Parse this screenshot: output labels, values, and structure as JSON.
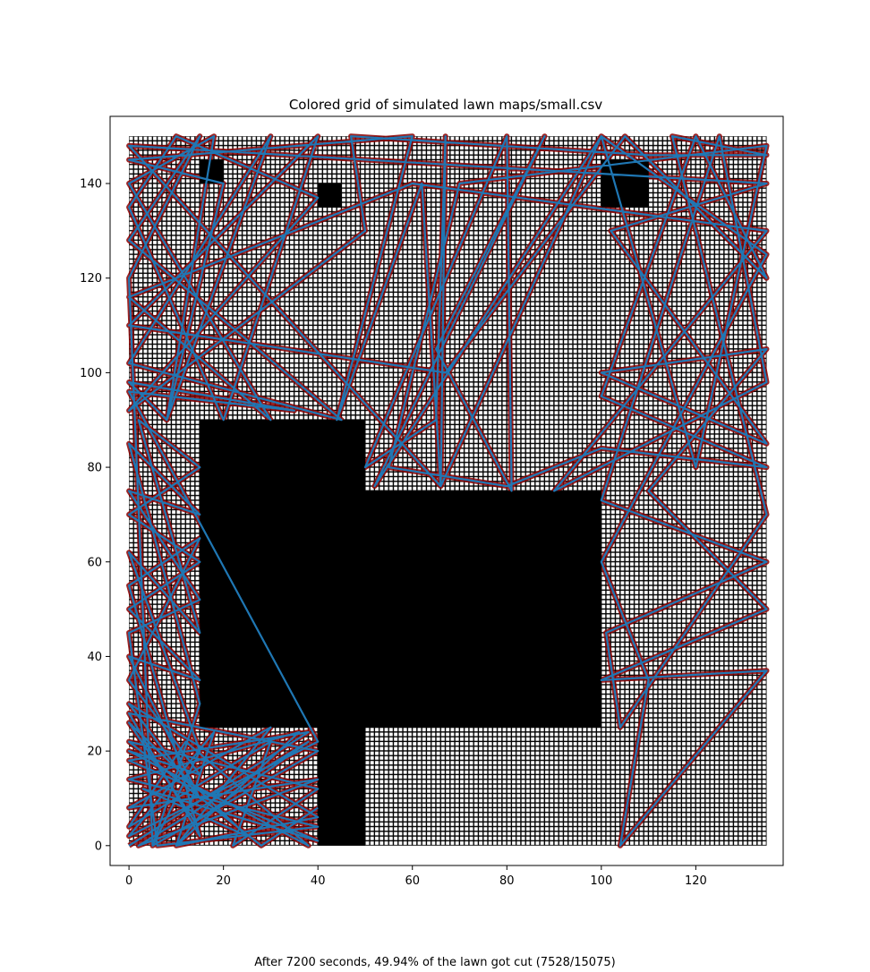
{
  "chart_data": {
    "type": "heatmap",
    "title": "Colored grid of simulated lawn maps/small.csv",
    "caption": "After 7200 seconds, 49.94% of the lawn got cut (7528/15075)",
    "xlabel": "",
    "ylabel": "",
    "xlim": [
      -4,
      138.5
    ],
    "ylim": [
      -4.2,
      154.2
    ],
    "grid_extent": {
      "x": [
        0,
        135
      ],
      "y": [
        0,
        150
      ]
    },
    "grid": false,
    "xticks": [
      0,
      20,
      40,
      60,
      80,
      100,
      120
    ],
    "yticks": [
      0,
      20,
      40,
      60,
      80,
      100,
      120,
      140
    ],
    "colors": {
      "uncut": "#ffffff",
      "cell_lines": "#000000",
      "obstacle": "#000000",
      "cut": "#8b0000",
      "path": "#1f77b4"
    },
    "obstacles": [
      {
        "x": [
          15,
          50
        ],
        "y": [
          25,
          90
        ]
      },
      {
        "x": [
          50,
          100
        ],
        "y": [
          25,
          75
        ]
      },
      {
        "x": [
          40,
          50
        ],
        "y": [
          0,
          25
        ]
      },
      {
        "x": [
          15,
          20
        ],
        "y": [
          140,
          145
        ]
      },
      {
        "x": [
          40,
          45
        ],
        "y": [
          135,
          140
        ]
      },
      {
        "x": [
          100,
          110
        ],
        "y": [
          135,
          145
        ]
      }
    ],
    "path": [
      [
        0,
        0
      ],
      [
        38,
        24
      ],
      [
        0,
        18
      ],
      [
        40,
        1
      ],
      [
        3,
        12
      ],
      [
        25,
        2
      ],
      [
        0,
        26
      ],
      [
        14,
        5
      ],
      [
        38,
        22
      ],
      [
        2,
        0
      ],
      [
        40,
        14
      ],
      [
        0,
        8
      ],
      [
        30,
        25
      ],
      [
        10,
        0
      ],
      [
        40,
        6
      ],
      [
        0,
        30
      ],
      [
        15,
        10
      ],
      [
        0,
        40
      ],
      [
        15,
        35
      ],
      [
        0,
        50
      ],
      [
        15,
        60
      ],
      [
        0,
        70
      ],
      [
        15,
        80
      ],
      [
        2,
        90
      ],
      [
        15,
        45
      ],
      [
        0,
        62
      ],
      [
        15,
        20
      ],
      [
        5,
        0
      ],
      [
        0,
        120
      ],
      [
        15,
        150
      ],
      [
        0,
        128
      ],
      [
        45,
        90
      ],
      [
        0,
        102
      ],
      [
        30,
        150
      ],
      [
        8,
        90
      ],
      [
        20,
        140
      ],
      [
        0,
        145
      ],
      [
        60,
        150
      ],
      [
        44,
        90
      ],
      [
        62,
        140
      ],
      [
        66,
        76
      ],
      [
        67,
        150
      ],
      [
        65,
        90
      ],
      [
        50,
        80
      ],
      [
        80,
        150
      ],
      [
        81,
        75
      ],
      [
        65,
        105
      ],
      [
        88,
        150
      ],
      [
        52,
        76
      ],
      [
        100,
        150
      ],
      [
        66,
        76
      ],
      [
        0,
        148
      ],
      [
        135,
        140
      ],
      [
        102,
        130
      ],
      [
        135,
        85
      ],
      [
        100,
        100
      ],
      [
        135,
        105
      ],
      [
        110,
        75
      ],
      [
        135,
        50
      ],
      [
        100,
        35
      ],
      [
        135,
        37
      ],
      [
        104,
        0
      ],
      [
        110,
        35
      ],
      [
        100,
        60
      ],
      [
        135,
        125
      ],
      [
        100,
        150
      ],
      [
        120,
        80
      ],
      [
        135,
        148
      ],
      [
        70,
        140
      ],
      [
        55,
        80
      ],
      [
        80,
        76
      ],
      [
        100,
        84
      ],
      [
        135,
        80
      ],
      [
        100,
        95
      ],
      [
        120,
        150
      ],
      [
        135,
        120
      ],
      [
        105,
        150
      ],
      [
        67,
        100
      ],
      [
        0,
        110
      ],
      [
        40,
        150
      ],
      [
        20,
        90
      ],
      [
        0,
        135
      ],
      [
        10,
        150
      ],
      [
        40,
        137
      ],
      [
        0,
        92
      ],
      [
        50,
        130
      ],
      [
        47,
        150
      ],
      [
        110,
        146
      ],
      [
        135,
        146
      ],
      [
        115,
        150
      ],
      [
        135,
        70
      ],
      [
        104,
        25
      ],
      [
        101,
        45
      ],
      [
        135,
        60
      ],
      [
        100,
        73
      ],
      [
        125,
        150
      ],
      [
        135,
        98
      ],
      [
        90,
        75
      ],
      [
        135,
        130
      ],
      [
        60,
        140
      ],
      [
        0,
        116
      ],
      [
        30,
        90
      ],
      [
        0,
        140
      ],
      [
        18,
        150
      ],
      [
        8,
        90
      ],
      [
        0,
        98
      ],
      [
        35,
        92
      ],
      [
        0,
        96
      ],
      [
        40,
        22
      ],
      [
        0,
        2
      ],
      [
        18,
        24
      ],
      [
        10,
        0
      ],
      [
        36,
        24
      ],
      [
        0,
        14
      ],
      [
        40,
        4
      ],
      [
        6,
        0
      ],
      [
        0,
        45
      ],
      [
        15,
        52
      ],
      [
        0,
        75
      ],
      [
        15,
        70
      ],
      [
        0,
        85
      ],
      [
        15,
        30
      ],
      [
        5,
        0
      ],
      [
        40,
        20
      ],
      [
        0,
        28
      ],
      [
        15,
        2
      ],
      [
        0,
        55
      ],
      [
        15,
        65
      ],
      [
        0,
        35
      ],
      [
        15,
        15
      ],
      [
        0,
        20
      ],
      [
        38,
        0
      ],
      [
        12,
        22
      ],
      [
        0,
        4
      ],
      [
        30,
        22
      ],
      [
        22,
        0
      ],
      [
        40,
        12
      ],
      [
        0,
        22
      ],
      [
        28,
        0
      ],
      [
        40,
        8
      ]
    ]
  }
}
